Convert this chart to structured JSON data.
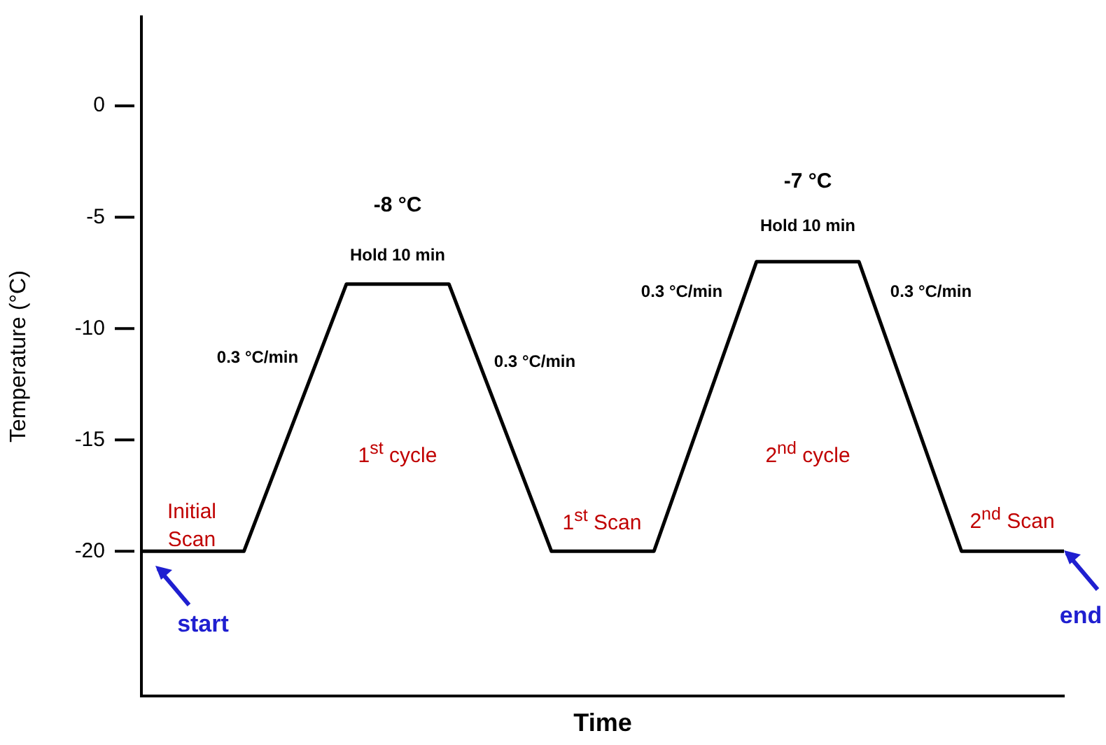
{
  "chart_data": {
    "type": "line",
    "xlabel": "Time",
    "ylabel": "Temperature (°C)",
    "categories": [
      null,
      null,
      null,
      null,
      null,
      null,
      null,
      null,
      null,
      null
    ],
    "series": [
      {
        "color": "#000000",
        "values": [
          -20,
          -20,
          -8,
          -8,
          -20,
          -20,
          -7,
          -7,
          -20,
          -20
        ]
      }
    ],
    "ylim": [
      -26.5,
      4
    ],
    "yticks": [
      0,
      -5,
      -10,
      -15,
      -20
    ],
    "tick_labels": "y",
    "grid": false,
    "legend": false,
    "marker": "none",
    "line_style": "solid",
    "annotations": [
      "-8 °C",
      "Hold 10 min",
      "-7 °C",
      "Hold 10 min",
      "0.3 °C/min",
      "0.3 °C/min",
      "0.3 °C/min",
      "0.3 °C/min",
      "Initial Scan",
      "1$^{st}$ cycle",
      "1$^{st}$ Scan",
      "2$^{nd}$ cycle",
      "2$^{nd}$ Scan",
      "start",
      "end"
    ]
  }
}
